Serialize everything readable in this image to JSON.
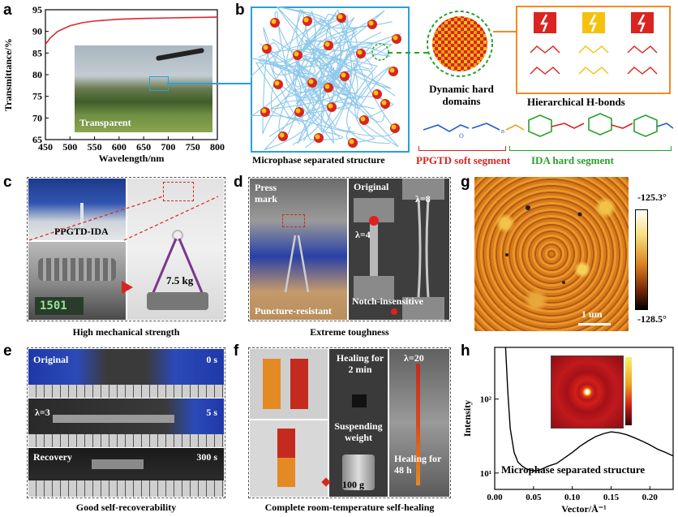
{
  "panels": {
    "a": {
      "letter": "a",
      "inset_label": "Transparent"
    },
    "b": {
      "letter": "b",
      "structure_label": "Microphase separated structure",
      "domains_label": "Dynamic hard domains",
      "hbond_label": "Hierarchical H-bonds",
      "soft_label": "PPGTD soft segment",
      "hard_label": "IDA hard segment"
    },
    "c": {
      "letter": "c",
      "sample_label": "PPGTD-IDA",
      "weight_label": "7.5 kg",
      "scale_reading": "1501",
      "caption": "High mechanical strength"
    },
    "d": {
      "letter": "d",
      "press_label": "Press mark",
      "puncture_label": "Puncture-resistant",
      "original_label": "Original",
      "lambda8_label": "λ=8",
      "lambda4_label": "λ=4",
      "notch_label": "Notch-insensitive",
      "caption": "Extreme toughness"
    },
    "e": {
      "letter": "e",
      "original_label": "Original",
      "t0": "0 s",
      "lambda_label": "λ=3",
      "t5": "5 s",
      "recovery_label": "Recovery",
      "t300": "300 s",
      "caption": "Good self-recoverability"
    },
    "f": {
      "letter": "f",
      "heal2_label": "Healing for 2 min",
      "suspend_label": "Suspending weight",
      "weight_label": "100 g",
      "lambda20_label": "λ=20",
      "heal48_label": "Healing for 48 h",
      "caption": "Complete room-temperature self-healing"
    },
    "g": {
      "letter": "g",
      "scale_max": "-125.3°",
      "scale_min": "-128.5°",
      "scalebar_label": "1 um"
    },
    "h": {
      "letter": "h",
      "inset_label": "Microphase separated structure"
    }
  },
  "chart_data": [
    {
      "type": "line",
      "panel": "a",
      "xlabel": "Wavelength/nm",
      "ylabel": "Transmittance/%",
      "xlim": [
        450,
        800
      ],
      "ylim": [
        65,
        95
      ],
      "xticks": [
        450,
        500,
        550,
        600,
        650,
        700,
        750,
        800
      ],
      "yticks": [
        65,
        70,
        75,
        80,
        85,
        90,
        95
      ],
      "series": [
        {
          "color": "#e0242b",
          "x": [
            450,
            460,
            475,
            500,
            525,
            550,
            600,
            650,
            700,
            750,
            800
          ],
          "y": [
            87.0,
            88.5,
            90.0,
            91.3,
            92.0,
            92.4,
            92.8,
            93.0,
            93.1,
            93.2,
            93.3
          ]
        }
      ]
    },
    {
      "type": "line",
      "panel": "h",
      "xlabel": "Vector/Å⁻¹",
      "ylabel": "Intensity",
      "yscale": "log",
      "xlim": [
        0.0,
        0.23
      ],
      "ylim": [
        6,
        500
      ],
      "xticks": [
        0.0,
        0.05,
        0.1,
        0.15,
        0.2
      ],
      "yticks": [
        10,
        100
      ],
      "ytick_labels": [
        "10¹",
        "10²"
      ],
      "series": [
        {
          "color": "#000000",
          "x": [
            0.014,
            0.017,
            0.02,
            0.025,
            0.03,
            0.035,
            0.04,
            0.045,
            0.05,
            0.055,
            0.06,
            0.07,
            0.08,
            0.09,
            0.1,
            0.11,
            0.12,
            0.13,
            0.14,
            0.15,
            0.16,
            0.17,
            0.18,
            0.19,
            0.2,
            0.21,
            0.22,
            0.23
          ],
          "y": [
            500,
            120,
            40,
            19,
            14,
            12.5,
            11.5,
            11.0,
            10.7,
            10.8,
            11.2,
            12.5,
            13.5,
            16,
            19,
            23,
            27,
            31,
            34,
            36,
            35,
            33,
            30,
            27,
            24,
            21,
            19,
            17
          ]
        }
      ]
    }
  ],
  "colors": {
    "red": "#d9241f",
    "green": "#2aa02a",
    "blue": "#1f60c8",
    "orange": "#f08a24",
    "yellow": "#f4c20d",
    "cyan": "#2a9fd6"
  }
}
